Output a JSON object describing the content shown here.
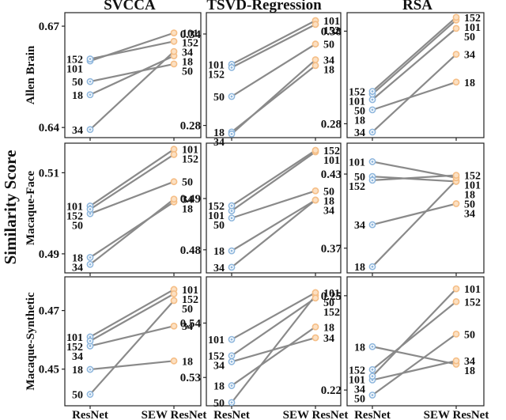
{
  "ylabel": "Similarity Score",
  "columns": [
    "SVCCA",
    "TSVD-Regression",
    "RSA"
  ],
  "rows": [
    "Allen Brain",
    "Macaque-Face",
    "Macaque-Synthetic"
  ],
  "xticks": [
    "ResNet",
    "SEW ResNet"
  ],
  "colors": {
    "left_marker": "#8fb7dd",
    "right_marker": "#f5be86",
    "line": "#8a8a8a"
  },
  "chart_data": [
    {
      "type": "line",
      "row": "Allen Brain",
      "column": "SVCCA",
      "categories": [
        "ResNet",
        "SEW ResNet"
      ],
      "yticks": [
        0.64,
        0.67
      ],
      "ylim": [
        0.637,
        0.674
      ],
      "series": [
        {
          "name": "18",
          "values": [
            0.6497,
            0.6612
          ]
        },
        {
          "name": "34",
          "values": [
            0.6394,
            0.6625
          ]
        },
        {
          "name": "50",
          "values": [
            0.6536,
            0.6588
          ]
        },
        {
          "name": "101",
          "values": [
            0.6597,
            0.668
          ]
        },
        {
          "name": "152",
          "values": [
            0.6603,
            0.6655
          ]
        }
      ]
    },
    {
      "type": "line",
      "row": "Allen Brain",
      "column": "TSVD-Regression",
      "categories": [
        "ResNet",
        "SEW ResNet"
      ],
      "yticks": [
        0.28,
        0.34
      ],
      "ylim": [
        0.272,
        0.354
      ],
      "series": [
        {
          "name": "18",
          "values": [
            0.2757,
            0.3193
          ]
        },
        {
          "name": "34",
          "values": [
            0.2744,
            0.3231
          ]
        },
        {
          "name": "50",
          "values": [
            0.299,
            0.3334
          ]
        },
        {
          "name": "101",
          "values": [
            0.3201,
            0.3488
          ]
        },
        {
          "name": "152",
          "values": [
            0.318,
            0.3463
          ]
        }
      ]
    },
    {
      "type": "line",
      "row": "Allen Brain",
      "column": "RSA",
      "categories": [
        "ResNet",
        "SEW ResNet"
      ],
      "yticks": [
        0.28,
        0.38
      ],
      "ylim": [
        0.265,
        0.4
      ],
      "series": [
        {
          "name": "18",
          "values": [
            0.295,
            0.325
          ]
        },
        {
          "name": "34",
          "values": [
            0.271,
            0.355
          ]
        },
        {
          "name": "50",
          "values": [
            0.306,
            0.383
          ]
        },
        {
          "name": "101",
          "values": [
            0.312,
            0.392
          ]
        },
        {
          "name": "152",
          "values": [
            0.315,
            0.395
          ]
        }
      ]
    },
    {
      "type": "line",
      "row": "Macaque-Face",
      "column": "SVCCA",
      "categories": [
        "ResNet",
        "SEW ResNet"
      ],
      "yticks": [
        0.49,
        0.51
      ],
      "ylim": [
        0.4853,
        0.5173
      ],
      "series": [
        {
          "name": "18",
          "values": [
            0.4891,
            0.5028
          ]
        },
        {
          "name": "34",
          "values": [
            0.4874,
            0.5035
          ]
        },
        {
          "name": "50",
          "values": [
            0.4999,
            0.5078
          ]
        },
        {
          "name": "101",
          "values": [
            0.5018,
            0.5158
          ]
        },
        {
          "name": "152",
          "values": [
            0.501,
            0.5145
          ]
        }
      ]
    },
    {
      "type": "line",
      "row": "Macaque-Face",
      "column": "TSVD-Regression",
      "categories": [
        "ResNet",
        "SEW ResNet"
      ],
      "yticks": [
        0.48,
        0.49
      ],
      "ylim": [
        0.4755,
        0.5008
      ],
      "series": [
        {
          "name": "18",
          "values": [
            0.4798,
            0.4897
          ]
        },
        {
          "name": "34",
          "values": [
            0.4766,
            0.4897
          ]
        },
        {
          "name": "50",
          "values": [
            0.4862,
            0.4915
          ]
        },
        {
          "name": "101",
          "values": [
            0.4876,
            0.4991
          ]
        },
        {
          "name": "152",
          "values": [
            0.4886,
            0.4994
          ]
        }
      ]
    },
    {
      "type": "line",
      "row": "Macaque-Face",
      "column": "RSA",
      "categories": [
        "ResNet",
        "SEW ResNet"
      ],
      "yticks": [
        0.37,
        0.43
      ],
      "ylim": [
        0.35,
        0.455
      ],
      "series": [
        {
          "name": "18",
          "values": [
            0.355,
            0.425
          ]
        },
        {
          "name": "34",
          "values": [
            0.389,
            0.406
          ]
        },
        {
          "name": "50",
          "values": [
            0.428,
            0.424
          ]
        },
        {
          "name": "101",
          "values": [
            0.44,
            0.427
          ]
        },
        {
          "name": "152",
          "values": [
            0.425,
            0.429
          ]
        }
      ]
    },
    {
      "type": "line",
      "row": "Macaque-Synthetic",
      "column": "SVCCA",
      "categories": [
        "ResNet",
        "SEW ResNet"
      ],
      "yticks": [
        0.45,
        0.47
      ],
      "ylim": [
        0.4375,
        0.4815
      ],
      "series": [
        {
          "name": "18",
          "values": [
            0.4499,
            0.4528
          ]
        },
        {
          "name": "34",
          "values": [
            0.4579,
            0.4647
          ]
        },
        {
          "name": "50",
          "values": [
            0.4414,
            0.4734
          ]
        },
        {
          "name": "101",
          "values": [
            0.461,
            0.4772
          ]
        },
        {
          "name": "152",
          "values": [
            0.4596,
            0.4757
          ]
        }
      ]
    },
    {
      "type": "line",
      "row": "Macaque-Synthetic",
      "column": "TSVD-Regression",
      "categories": [
        "ResNet",
        "SEW ResNet"
      ],
      "yticks": [
        0.53,
        0.54
      ],
      "ylim": [
        0.5248,
        0.5485
      ],
      "series": [
        {
          "name": "18",
          "values": [
            0.5285,
            0.5393
          ]
        },
        {
          "name": "34",
          "values": [
            0.5329,
            0.5373
          ]
        },
        {
          "name": "50",
          "values": [
            0.5254,
            0.5451
          ]
        },
        {
          "name": "101",
          "values": [
            0.537,
            0.5456
          ]
        },
        {
          "name": "152",
          "values": [
            0.534,
            0.5446
          ]
        }
      ]
    },
    {
      "type": "line",
      "row": "Macaque-Synthetic",
      "column": "RSA",
      "categories": [
        "ResNet",
        "SEW ResNet"
      ],
      "yticks": [
        0.22,
        0.25
      ],
      "ylim": [
        0.215,
        0.256
      ],
      "series": [
        {
          "name": "18",
          "values": [
            0.2338,
            0.2282
          ]
        },
        {
          "name": "34",
          "values": [
            0.2232,
            0.2293
          ]
        },
        {
          "name": "50",
          "values": [
            0.2184,
            0.2378
          ]
        },
        {
          "name": "101",
          "values": [
            0.2244,
            0.2522
          ]
        },
        {
          "name": "152",
          "values": [
            0.2265,
            0.2481
          ]
        }
      ]
    }
  ]
}
